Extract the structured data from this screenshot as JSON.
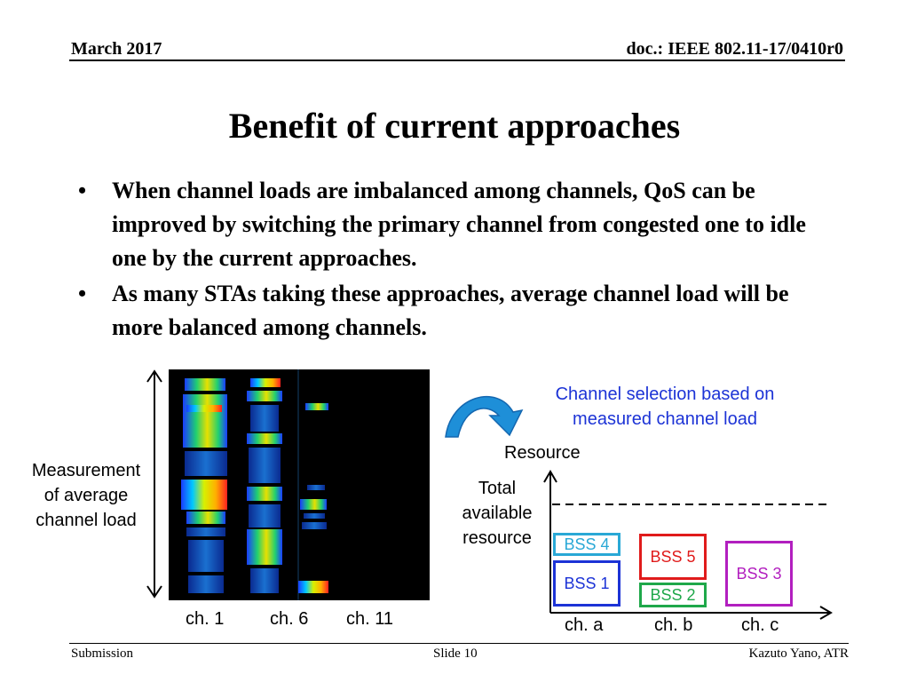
{
  "header": {
    "date": "March 2017",
    "doc": "doc.: IEEE 802.11-17/0410r0"
  },
  "title": "Benefit of current approaches",
  "bullets": [
    {
      "marker": "•",
      "text": "When channel loads are imbalanced among channels, QoS can be improved by switching the primary channel from congested one to idle one by the current approaches."
    },
    {
      "marker": "•",
      "text": "As many STAs taking these approaches, average channel load will be more balanced among channels."
    }
  ],
  "waterfall": {
    "side_label": "Measurement of average channel load",
    "channels": [
      "ch. 1",
      "ch. 6",
      "ch. 11"
    ]
  },
  "diagram": {
    "note": "Channel selection based on measured channel load",
    "y_label": "Resource",
    "total_label": "Total available resource",
    "channels": [
      "ch. a",
      "ch. b",
      "ch. c"
    ],
    "bss": [
      {
        "label": "BSS 4",
        "color": "#29a8d6"
      },
      {
        "label": "BSS 1",
        "color": "#1c33d6"
      },
      {
        "label": "BSS 5",
        "color": "#e01b1b"
      },
      {
        "label": "BSS 2",
        "color": "#1fa84a"
      },
      {
        "label": "BSS 3",
        "color": "#b21fbf"
      }
    ]
  },
  "footer": {
    "left": "Submission",
    "center": "Slide 10",
    "right": "Kazuto Yano, ATR"
  }
}
